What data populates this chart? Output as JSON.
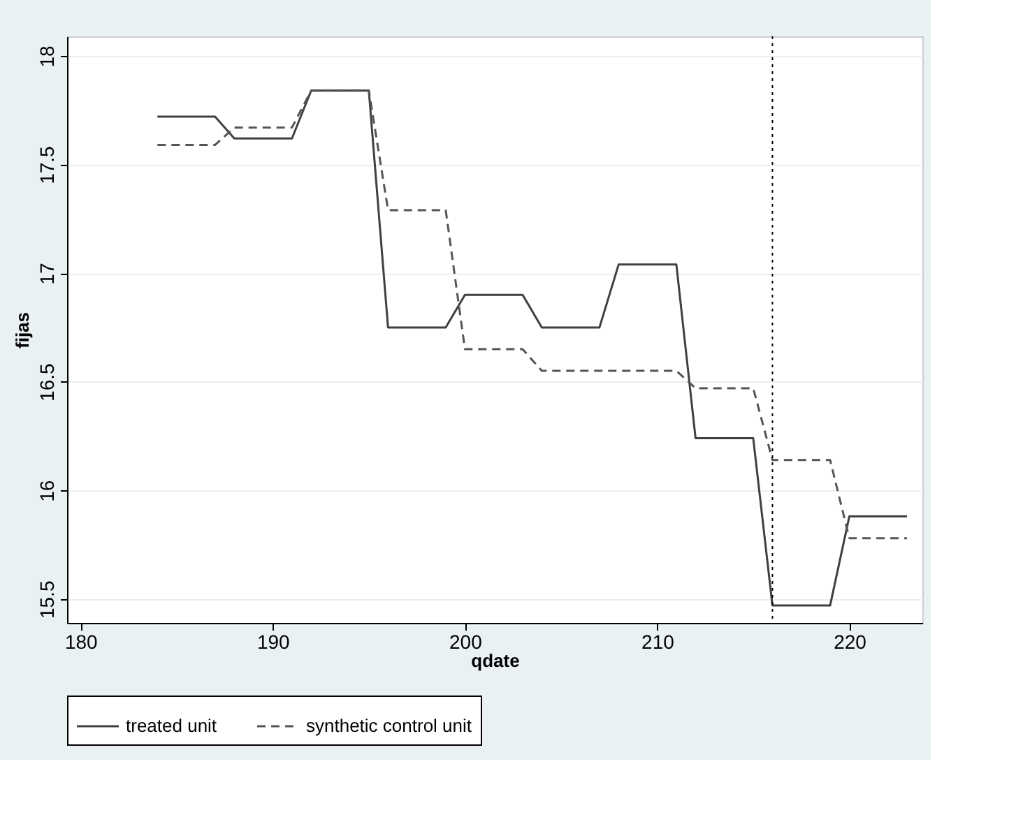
{
  "chart_data": {
    "type": "line",
    "xlabel": "qdate",
    "ylabel": "fijas",
    "x": [
      184,
      187,
      188,
      191,
      192,
      195,
      196,
      199,
      200,
      203,
      204,
      207,
      208,
      211,
      212,
      215,
      216,
      219,
      220,
      223
    ],
    "series": [
      {
        "name": "treated unit",
        "color": "#404040",
        "line_style": "solid",
        "values": [
          17.72,
          17.72,
          17.62,
          17.62,
          17.84,
          17.84,
          16.75,
          16.75,
          16.9,
          16.9,
          16.75,
          16.75,
          17.04,
          17.04,
          16.24,
          16.24,
          15.47,
          15.47,
          15.88,
          15.88
        ]
      },
      {
        "name": "synthetic control unit",
        "color": "#555555",
        "line_style": "dashed",
        "values": [
          17.59,
          17.59,
          17.67,
          17.67,
          17.84,
          17.84,
          17.29,
          17.29,
          16.65,
          16.65,
          16.55,
          16.55,
          16.55,
          16.55,
          16.47,
          16.47,
          16.14,
          16.14,
          15.78,
          15.78
        ]
      }
    ],
    "xlim": [
      179.3,
      223.8
    ],
    "xticks": [
      180,
      190,
      200,
      210,
      220
    ],
    "ylim": [
      15.39,
      18.09
    ],
    "yticks": [
      15.5,
      16,
      16.5,
      17,
      17.5,
      18
    ],
    "ref_lines": [
      {
        "axis": "x",
        "value": 216,
        "color": "#000000",
        "line_style": "dotted"
      }
    ],
    "grid": "y",
    "legend": "bottom",
    "marker": "none"
  }
}
